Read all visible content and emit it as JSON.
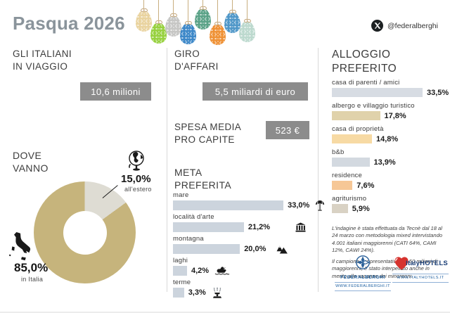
{
  "header": {
    "title": "Pasqua 2026",
    "social_handle": "@federalberghi"
  },
  "decor": {
    "eggs": [
      {
        "color": "#e9d39e",
        "string": 12
      },
      {
        "color": "#97d13e",
        "string": 29
      },
      {
        "color": "#c6c6c4",
        "string": 19
      },
      {
        "color": "#3c87c8",
        "string": 30
      },
      {
        "color": "#5aa287",
        "string": 9
      },
      {
        "color": "#ef9135",
        "string": 31
      },
      {
        "color": "#4e96c8",
        "string": 14
      },
      {
        "color": "#bcd9ce",
        "string": 27
      }
    ]
  },
  "left": {
    "travellers_heading": "GLI ITALIANI\nIN VIAGGIO",
    "travellers_value": "10,6 milioni",
    "destinations_heading": "DOVE\nVANNO",
    "abroad_label": "15,0%",
    "abroad_sublabel": "all'estero",
    "italy_label": "85,0%",
    "italy_sublabel": "in Italia"
  },
  "middle": {
    "business_heading": "GIRO\nD'AFFARI",
    "business_value": "5,5 miliardi di euro",
    "spend_heading": "SPESA MEDIA\nPRO CAPITE",
    "spend_value": "523 €",
    "meta_heading": "META\nPREFERITA"
  },
  "right": {
    "heading": "ALLOGGIO\nPREFERITO",
    "footnote1": "L'indagine è stata effettuata da Tecnè dal 18 al 24 marzo con metodologia mixed intervistando 4.001 italiani maggiorenni (CATI 64%, CAMI 12%, CAWI 24%).",
    "footnote2": "Il campione, rappresentativo del 50 milioni di maggiorenni, è stato interpellato anche in merito alle vacanze dei minorenni.",
    "logos": [
      {
        "name": "FEDERALBERGHI",
        "url": "WWW.FEDERALBERGHI.IT"
      },
      {
        "name": "ItalyHOTELS",
        "url": "WWW.ITALYHOTELS.IT"
      }
    ]
  },
  "icons": {
    "social": "x-logo-icon",
    "globe": "globe-icon",
    "italy": "italy-map-icon",
    "federalberghi": "federalberghi-emblem-icon",
    "italyhotels": "heart-icon"
  },
  "colors": {
    "title": "#8a949b",
    "badge": "#8c8c8c",
    "donut_italy": "#c6b47c",
    "donut_abroad": "#dedcd3",
    "meta_bar": "#ccd4dd"
  },
  "chart_data": [
    {
      "type": "pie",
      "variant": "donut",
      "title": "DOVE VANNO",
      "labels": [
        "in Italia",
        "all'estero"
      ],
      "values": [
        85.0,
        15.0
      ],
      "display_values": [
        "85,0%",
        "15,0%"
      ],
      "colors": [
        "#c6b47c",
        "#dedcd3"
      ],
      "legend_position": "callout-labels"
    },
    {
      "type": "bar",
      "orientation": "horizontal",
      "title": "META PREFERITA",
      "categories": [
        "mare",
        "località d'arte",
        "montagna",
        "laghi",
        "terme"
      ],
      "values": [
        33.0,
        21.2,
        20.0,
        4.2,
        3.3
      ],
      "display_values": [
        "33,0%",
        "21,2%",
        "20,0%",
        "4,2%",
        "3,3%"
      ],
      "icons": [
        "beach-umbrella-icon",
        "classical-building-icon",
        "mountain-icon",
        "duck-icon",
        "fountain-icon"
      ],
      "bar_color": "#ccd4dd",
      "xlim": [
        0,
        35
      ],
      "grid": false
    },
    {
      "type": "bar",
      "orientation": "horizontal",
      "title": "ALLOGGIO PREFERITO",
      "categories": [
        "casa di parenti / amici",
        "albergo e villaggio turistico",
        "casa di proprietà",
        "b&b",
        "residence",
        "agriturismo"
      ],
      "values": [
        33.5,
        17.8,
        14.8,
        13.9,
        7.6,
        5.9
      ],
      "display_values": [
        "33,5%",
        "17,8%",
        "14,8%",
        "13,9%",
        "7,6%",
        "5,9%"
      ],
      "bar_colors": [
        "#d7dce3",
        "#e0d2ab",
        "#f7daa4",
        "#d3d9e0",
        "#f6c796",
        "#d9d2c4"
      ],
      "xlim": [
        0,
        35
      ],
      "grid": false
    }
  ]
}
